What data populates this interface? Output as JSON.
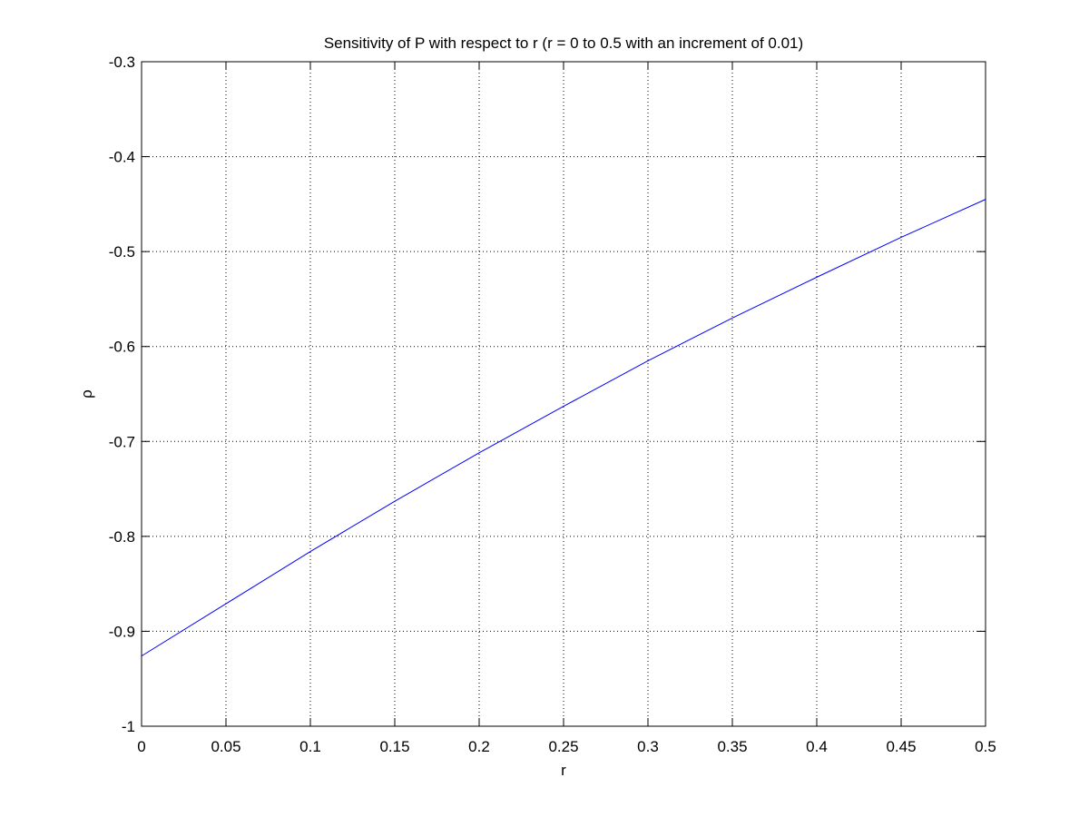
{
  "chart_data": {
    "type": "line",
    "title": "Sensitivity of P with respect to r (r = 0 to 0.5 with an increment of 0.01)",
    "xlabel": "r",
    "ylabel": "ρ",
    "xlim": [
      0,
      0.5
    ],
    "ylim": [
      -1,
      -0.3
    ],
    "grid": true,
    "x_ticks": [
      0,
      0.05,
      0.1,
      0.15,
      0.2,
      0.25,
      0.3,
      0.35,
      0.4,
      0.45,
      0.5
    ],
    "y_ticks": [
      -1,
      -0.9,
      -0.8,
      -0.7,
      -0.6,
      -0.5,
      -0.4,
      -0.3
    ],
    "x_tick_labels": [
      "0",
      "0.05",
      "0.1",
      "0.15",
      "0.2",
      "0.25",
      "0.3",
      "0.35",
      "0.4",
      "0.45",
      "0.5"
    ],
    "y_tick_labels": [
      "-1",
      "-0.9",
      "-0.8",
      "-0.7",
      "-0.6",
      "-0.5",
      "-0.4",
      "-0.3"
    ],
    "line_color": "#0000ff",
    "series": [
      {
        "x": [
          0,
          0.05,
          0.1,
          0.15,
          0.2,
          0.25,
          0.3,
          0.35,
          0.4,
          0.45,
          0.5
        ],
        "values": [
          -0.926,
          -0.871,
          -0.816,
          -0.763,
          -0.712,
          -0.663,
          -0.615,
          -0.57,
          -0.527,
          -0.485,
          -0.445
        ]
      }
    ]
  }
}
